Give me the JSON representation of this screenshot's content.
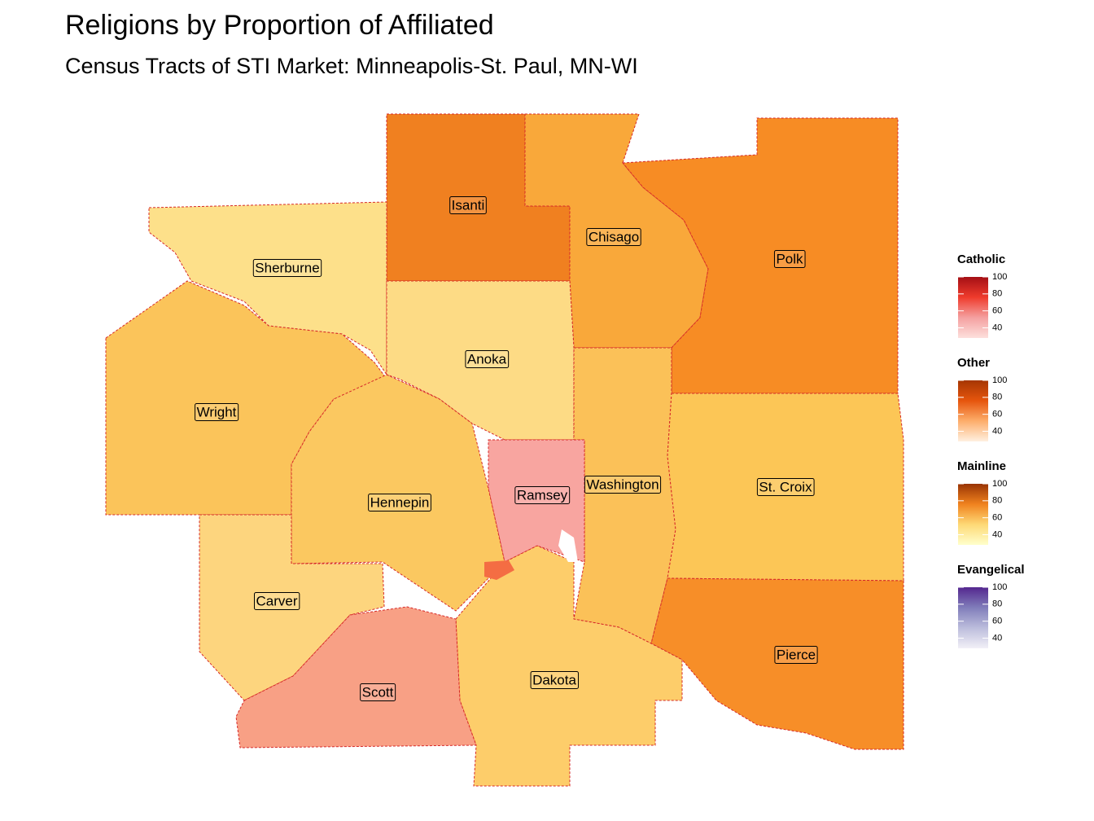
{
  "title": "Religions by Proportion of Affiliated",
  "subtitle": "Census Tracts of STI Market: Minneapolis-St. Paul, MN-WI",
  "counties": [
    {
      "name": "Isanti"
    },
    {
      "name": "Chisago"
    },
    {
      "name": "Polk"
    },
    {
      "name": "Sherburne"
    },
    {
      "name": "Anoka"
    },
    {
      "name": "Wright"
    },
    {
      "name": "Washington"
    },
    {
      "name": "Ramsey"
    },
    {
      "name": "St. Croix"
    },
    {
      "name": "Hennepin"
    },
    {
      "name": "Carver"
    },
    {
      "name": "Pierce"
    },
    {
      "name": "Dakota"
    },
    {
      "name": "Scott"
    }
  ],
  "legends": [
    {
      "title": "Catholic",
      "colors": [
        "#fde0dd",
        "#f4a0a0",
        "#ef3b2c",
        "#a50f15"
      ],
      "lim": [
        28,
        100
      ],
      "ticks": [
        40,
        60,
        80,
        100
      ]
    },
    {
      "title": "Other",
      "colors": [
        "#fff0e0",
        "#fdae6b",
        "#e6550d",
        "#a63603"
      ],
      "lim": [
        28,
        100
      ],
      "ticks": [
        40,
        60,
        80,
        100
      ]
    },
    {
      "title": "Mainline",
      "colors": [
        "#ffffcc",
        "#fed976",
        "#f0821e",
        "#993404"
      ],
      "lim": [
        28,
        100
      ],
      "ticks": [
        40,
        60,
        80,
        100
      ]
    },
    {
      "title": "Evangelical",
      "colors": [
        "#f2f0f7",
        "#bcbddc",
        "#807dba",
        "#54278f"
      ],
      "lim": [
        28,
        100
      ],
      "ticks": [
        40,
        60,
        80,
        100
      ]
    }
  ]
}
